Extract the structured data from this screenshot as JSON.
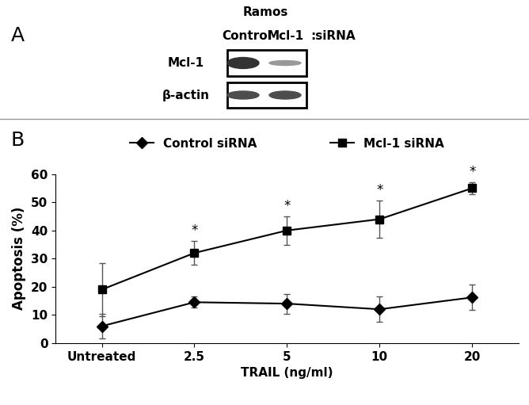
{
  "panel_a": {
    "label": "A",
    "cell_line": "Ramos",
    "columns": [
      "Control",
      "Mcl-1"
    ],
    "column_suffix": ":siRNA",
    "rows": [
      "Mcl-1",
      "β-actin"
    ]
  },
  "chart_data": {
    "label": "B",
    "type": "line",
    "categories": [
      "Untreated",
      "2.5",
      "5",
      "10",
      "20"
    ],
    "x_label": "TRAIL (ng/ml)",
    "y_label": "Apoptosis (%)",
    "ylim": [
      0,
      60
    ],
    "yticks": [
      0,
      10,
      20,
      30,
      40,
      50,
      60
    ],
    "legend": "upper center",
    "series": [
      {
        "name": "Control siRNA",
        "color": "#000000",
        "marker": "diamond",
        "line_style": "solid",
        "values": [
          6,
          14.5,
          14,
          12,
          16.2
        ],
        "errors": [
          4.5,
          2,
          3.5,
          4.5,
          4.5
        ]
      },
      {
        "name": "Mcl-1 siRNA",
        "color": "#000000",
        "marker": "square",
        "line_style": "solid",
        "values": [
          19,
          32,
          40,
          44,
          55
        ],
        "errors": [
          9.5,
          4.2,
          5,
          6.5,
          2
        ]
      }
    ],
    "annotations": [
      {
        "category": "2.5",
        "text": "*"
      },
      {
        "category": "5",
        "text": "*"
      },
      {
        "category": "10",
        "text": "*"
      },
      {
        "category": "20",
        "text": "*"
      }
    ]
  }
}
